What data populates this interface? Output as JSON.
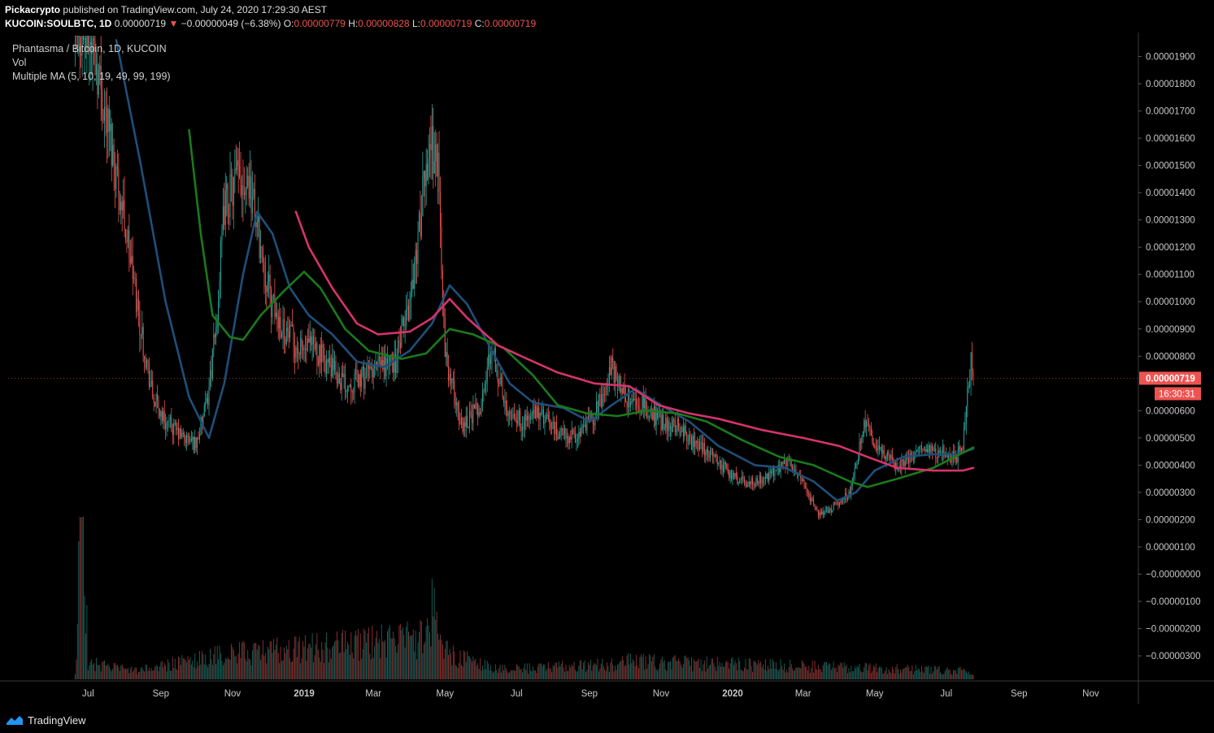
{
  "header": {
    "author": "Pickacrypto",
    "published": "published on TradingView.com, July 24, 2020 17:29:30 AEST",
    "symbol": "KUCOIN:SOULBTC, 1D",
    "last": "0.00000719",
    "change_arrow": "▼",
    "change": "−0.00000049 (−6.38%)",
    "o_label": "O:",
    "o": "0.00000779",
    "h_label": "H:",
    "h": "0.00000828",
    "l_label": "L:",
    "l": "0.00000719",
    "c_label": "C:",
    "c": "0.00000719"
  },
  "legend": {
    "title": "Phantasma / Bitcoin, 1D, KUCOIN",
    "vol": "Vol",
    "ma": "Multiple MA (5, 10, 19, 49, 99, 199)"
  },
  "price_tag": {
    "value": "0.00000719",
    "countdown": "16:30:31",
    "color": "#ef5350"
  },
  "footer": {
    "brand": "TradingView",
    "icon": "tradingview-logo-icon"
  },
  "colors": {
    "background": "#000000",
    "up": "#26a69a",
    "down": "#ef5350",
    "ma_blue": "#1e4f7a",
    "ma_green": "#1a7a1a",
    "ma_pink": "#d6336c"
  },
  "chart_data": {
    "type": "candlestick",
    "x_ticks": [
      "Jul",
      "Sep",
      "Nov",
      "2019",
      "Mar",
      "May",
      "Jul",
      "Sep",
      "Nov",
      "2020",
      "Mar",
      "May",
      "Jul",
      "Sep",
      "Nov"
    ],
    "y_ticks": [
      "0.00001900",
      "0.00001800",
      "0.00001700",
      "0.00001600",
      "0.00001500",
      "0.00001400",
      "0.00001300",
      "0.00001200",
      "0.00001100",
      "0.00001000",
      "0.00000900",
      "0.00000800",
      "0.00000600",
      "0.00000500",
      "0.00000400",
      "0.00000300",
      "0.00000200",
      "0.00000100",
      "−0.00000000",
      "−0.00000100",
      "−0.00000200",
      "−0.00000300"
    ],
    "y_unit": 1e-08,
    "y_range": [
      -350,
      1970
    ],
    "price_path": [
      [
        "2018-06-20",
        2000
      ],
      [
        "2018-07-05",
        1950
      ],
      [
        "2018-07-20",
        1600
      ],
      [
        "2018-08-01",
        1300
      ],
      [
        "2018-08-15",
        900
      ],
      [
        "2018-08-25",
        650
      ],
      [
        "2018-09-05",
        560
      ],
      [
        "2018-09-20",
        500
      ],
      [
        "2018-10-01",
        480
      ],
      [
        "2018-10-10",
        620
      ],
      [
        "2018-10-18",
        900
      ],
      [
        "2018-10-25",
        1350
      ],
      [
        "2018-11-05",
        1450
      ],
      [
        "2018-11-15",
        1450
      ],
      [
        "2018-11-25",
        1200
      ],
      [
        "2018-12-05",
        980
      ],
      [
        "2018-12-15",
        900
      ],
      [
        "2018-12-28",
        820
      ],
      [
        "2019-01-10",
        830
      ],
      [
        "2019-01-25",
        750
      ],
      [
        "2019-02-05",
        700
      ],
      [
        "2019-02-20",
        720
      ],
      [
        "2019-03-05",
        760
      ],
      [
        "2019-03-20",
        780
      ],
      [
        "2019-04-01",
        1000
      ],
      [
        "2019-04-10",
        1300
      ],
      [
        "2019-04-18",
        1600
      ],
      [
        "2019-04-25",
        1500
      ],
      [
        "2019-05-01",
        800
      ],
      [
        "2019-05-15",
        550
      ],
      [
        "2019-06-01",
        620
      ],
      [
        "2019-06-10",
        850
      ],
      [
        "2019-06-20",
        630
      ],
      [
        "2019-07-05",
        560
      ],
      [
        "2019-07-20",
        590
      ],
      [
        "2019-08-05",
        520
      ],
      [
        "2019-08-20",
        500
      ],
      [
        "2019-09-05",
        580
      ],
      [
        "2019-09-20",
        760
      ],
      [
        "2019-10-01",
        650
      ],
      [
        "2019-10-15",
        620
      ],
      [
        "2019-11-01",
        560
      ],
      [
        "2019-11-15",
        550
      ],
      [
        "2019-11-30",
        470
      ],
      [
        "2019-12-15",
        440
      ],
      [
        "2020-01-01",
        360
      ],
      [
        "2020-01-15",
        330
      ],
      [
        "2020-02-01",
        360
      ],
      [
        "2020-02-15",
        420
      ],
      [
        "2020-03-01",
        340
      ],
      [
        "2020-03-13",
        220
      ],
      [
        "2020-03-25",
        240
      ],
      [
        "2020-04-10",
        300
      ],
      [
        "2020-04-22",
        540
      ],
      [
        "2020-05-05",
        470
      ],
      [
        "2020-05-20",
        400
      ],
      [
        "2020-06-01",
        430
      ],
      [
        "2020-06-15",
        460
      ],
      [
        "2020-07-01",
        450
      ],
      [
        "2020-07-10",
        420
      ],
      [
        "2020-07-15",
        480
      ],
      [
        "2020-07-19",
        650
      ],
      [
        "2020-07-22",
        780
      ],
      [
        "2020-07-24",
        719
      ]
    ],
    "ma_blue": [
      [
        "2018-07-25",
        1960
      ],
      [
        "2018-08-15",
        1500
      ],
      [
        "2018-09-05",
        1000
      ],
      [
        "2018-09-25",
        650
      ],
      [
        "2018-10-12",
        500
      ],
      [
        "2018-10-25",
        700
      ],
      [
        "2018-11-10",
        1100
      ],
      [
        "2018-11-22",
        1330
      ],
      [
        "2018-12-05",
        1250
      ],
      [
        "2018-12-20",
        1050
      ],
      [
        "2019-01-05",
        950
      ],
      [
        "2019-01-25",
        880
      ],
      [
        "2019-02-15",
        780
      ],
      [
        "2019-03-10",
        760
      ],
      [
        "2019-04-01",
        820
      ],
      [
        "2019-04-20",
        920
      ],
      [
        "2019-05-05",
        1060
      ],
      [
        "2019-05-20",
        990
      ],
      [
        "2019-06-10",
        820
      ],
      [
        "2019-06-25",
        700
      ],
      [
        "2019-07-15",
        630
      ],
      [
        "2019-08-10",
        610
      ],
      [
        "2019-09-01",
        560
      ],
      [
        "2019-09-20",
        620
      ],
      [
        "2019-10-10",
        680
      ],
      [
        "2019-11-01",
        620
      ],
      [
        "2019-11-25",
        560
      ],
      [
        "2019-12-20",
        470
      ],
      [
        "2020-01-20",
        400
      ],
      [
        "2020-02-15",
        390
      ],
      [
        "2020-03-10",
        340
      ],
      [
        "2020-03-30",
        270
      ],
      [
        "2020-04-15",
        300
      ],
      [
        "2020-05-01",
        380
      ],
      [
        "2020-05-25",
        430
      ],
      [
        "2020-06-20",
        440
      ],
      [
        "2020-07-10",
        440
      ],
      [
        "2020-07-24",
        460
      ]
    ],
    "ma_green": [
      [
        "2018-09-25",
        1630
      ],
      [
        "2018-10-05",
        1250
      ],
      [
        "2018-10-15",
        950
      ],
      [
        "2018-10-30",
        870
      ],
      [
        "2018-11-10",
        860
      ],
      [
        "2018-11-25",
        950
      ],
      [
        "2018-12-15",
        1040
      ],
      [
        "2019-01-01",
        1110
      ],
      [
        "2019-01-15",
        1050
      ],
      [
        "2019-02-05",
        900
      ],
      [
        "2019-02-25",
        820
      ],
      [
        "2019-03-25",
        790
      ],
      [
        "2019-04-15",
        810
      ],
      [
        "2019-05-05",
        900
      ],
      [
        "2019-05-25",
        880
      ],
      [
        "2019-06-20",
        830
      ],
      [
        "2019-07-15",
        730
      ],
      [
        "2019-08-05",
        620
      ],
      [
        "2019-08-30",
        590
      ],
      [
        "2019-09-25",
        580
      ],
      [
        "2019-10-20",
        600
      ],
      [
        "2019-11-15",
        590
      ],
      [
        "2019-12-10",
        560
      ],
      [
        "2020-01-10",
        490
      ],
      [
        "2020-02-10",
        430
      ],
      [
        "2020-03-10",
        400
      ],
      [
        "2020-04-10",
        340
      ],
      [
        "2020-04-25",
        320
      ],
      [
        "2020-05-20",
        350
      ],
      [
        "2020-06-20",
        390
      ],
      [
        "2020-07-24",
        465
      ]
    ],
    "ma_pink": [
      [
        "2018-12-25",
        1330
      ],
      [
        "2019-01-05",
        1200
      ],
      [
        "2019-01-25",
        1050
      ],
      [
        "2019-02-15",
        920
      ],
      [
        "2019-03-05",
        880
      ],
      [
        "2019-04-01",
        890
      ],
      [
        "2019-04-20",
        940
      ],
      [
        "2019-05-05",
        1010
      ],
      [
        "2019-05-20",
        940
      ],
      [
        "2019-06-15",
        840
      ],
      [
        "2019-07-10",
        790
      ],
      [
        "2019-08-05",
        740
      ],
      [
        "2019-09-05",
        700
      ],
      [
        "2019-10-05",
        690
      ],
      [
        "2019-10-30",
        620
      ],
      [
        "2019-11-25",
        590
      ],
      [
        "2019-12-20",
        570
      ],
      [
        "2020-01-25",
        530
      ],
      [
        "2020-03-01",
        500
      ],
      [
        "2020-04-01",
        470
      ],
      [
        "2020-04-25",
        430
      ],
      [
        "2020-05-20",
        390
      ],
      [
        "2020-06-20",
        380
      ],
      [
        "2020-07-15",
        380
      ],
      [
        "2020-07-24",
        390
      ]
    ],
    "volume_path": [
      [
        "2018-06-20",
        5
      ],
      [
        "2018-06-25",
        200
      ],
      [
        "2018-06-28",
        150
      ],
      [
        "2018-07-01",
        20
      ],
      [
        "2018-08-10",
        10
      ],
      [
        "2018-10-25",
        30
      ],
      [
        "2019-04-15",
        50
      ],
      [
        "2019-04-22",
        100
      ],
      [
        "2019-04-28",
        40
      ],
      [
        "2019-05-05",
        30
      ],
      [
        "2019-06-15",
        12
      ],
      [
        "2019-09-25",
        18
      ],
      [
        "2019-10-05",
        22
      ],
      [
        "2020-07-20",
        10
      ]
    ]
  }
}
